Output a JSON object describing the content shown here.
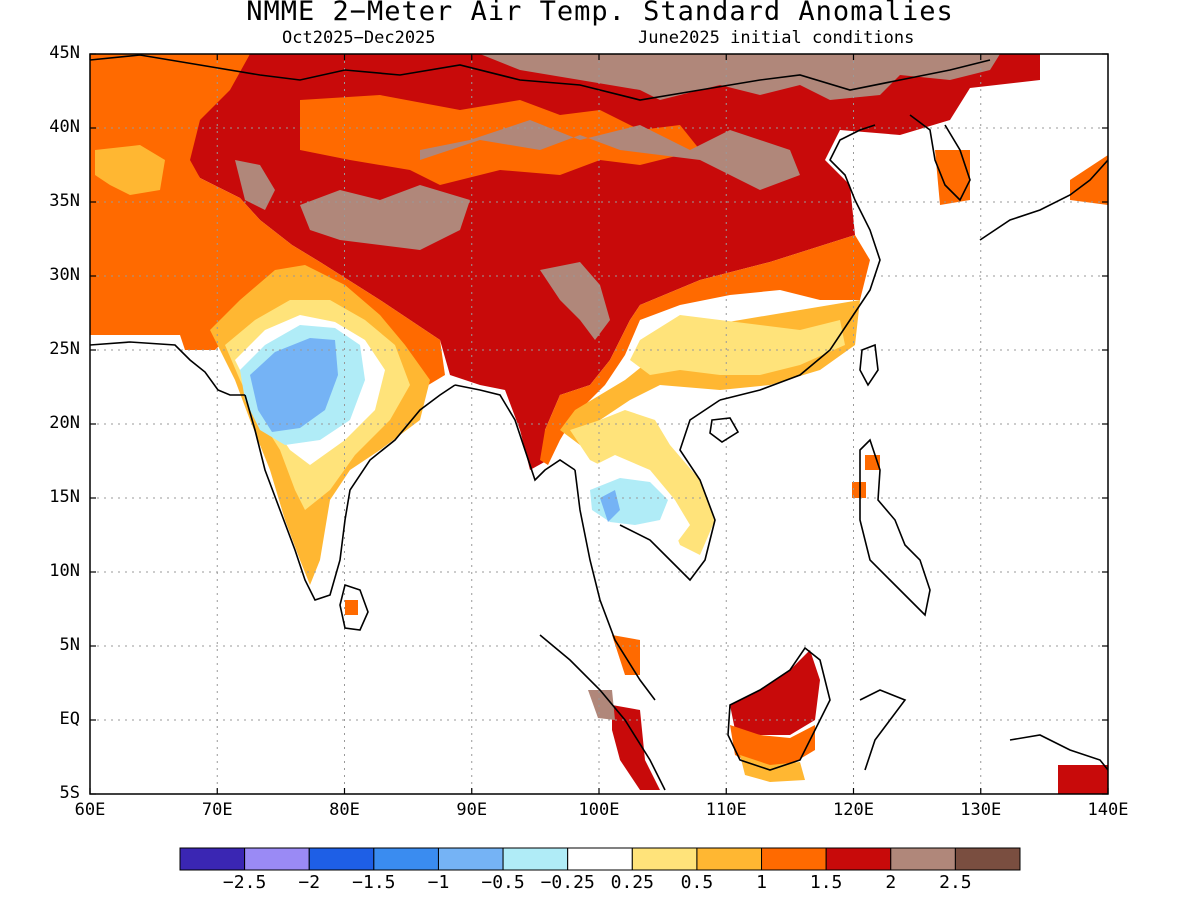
{
  "title": "NMME 2−Meter Air Temp. Standard Anomalies",
  "subtitle_left": "Oct2025−Dec2025",
  "subtitle_right": "June2025 initial conditions",
  "lat_labels": [
    "45N",
    "40N",
    "35N",
    "30N",
    "25N",
    "20N",
    "15N",
    "10N",
    "5N",
    "EQ",
    "5S"
  ],
  "lon_labels": [
    "60E",
    "70E",
    "80E",
    "90E",
    "100E",
    "110E",
    "120E",
    "130E",
    "140E"
  ],
  "colorbar": {
    "colors": [
      "#3a26b3",
      "#9a8af5",
      "#1e5fe6",
      "#3a8cf0",
      "#75b3f5",
      "#b0ecf7",
      "#ffffff",
      "#ffe37a",
      "#ffb732",
      "#ff6a00",
      "#c80a0a",
      "#b0877a",
      "#7a4e40"
    ],
    "labels": [
      "−2.5",
      "−2",
      "−1.5",
      "−1",
      "−0.5",
      "−0.25",
      "0.25",
      "0.5",
      "1",
      "1.5",
      "2",
      "2.5"
    ]
  },
  "colors": {
    "deep_red": "#c80a0a",
    "orange": "#ff6a00",
    "light_orange": "#ffb732",
    "yellow": "#ffe37a",
    "mauve": "#b0877a",
    "light_blue": "#b0ecf7",
    "blue": "#75b3f5",
    "mid_blue": "#3a8cf0"
  }
}
